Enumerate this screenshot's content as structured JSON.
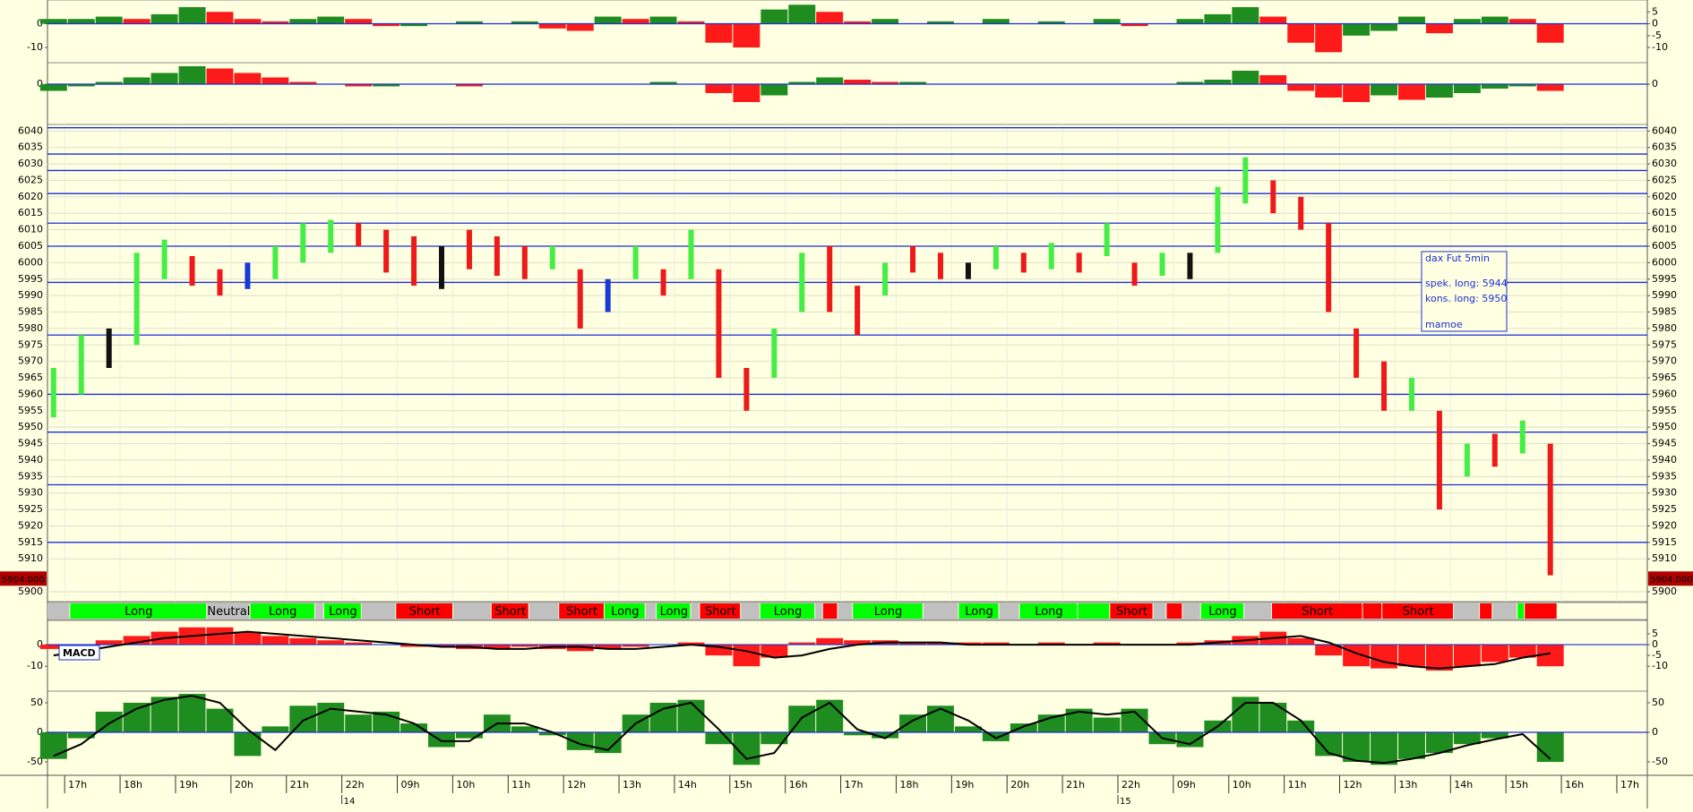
{
  "chart_data": [
    {
      "type": "bar",
      "xlim": [
        -0.31,
        28.55
      ],
      "ylim": [
        -16.4,
        10
      ],
      "yticks": [
        0,
        -10
      ],
      "y2lim": [
        -16.4,
        10
      ],
      "y2ticks": [
        5,
        0,
        -5,
        -10
      ],
      "x": [
        -0.2,
        0.3,
        0.8,
        1.3,
        1.8,
        2.3,
        2.8,
        3.3,
        3.8,
        4.3,
        4.8,
        5.3,
        5.8,
        6.3,
        6.8,
        7.3,
        7.8,
        8.3,
        8.8,
        9.3,
        9.8,
        10.3,
        10.8,
        11.3,
        11.8,
        12.3,
        12.8,
        13.3,
        13.8,
        14.3,
        14.8,
        15.3,
        15.8,
        16.3,
        16.8,
        17.3,
        17.8,
        18.3,
        18.8,
        19.3,
        19.8,
        20.3,
        20.8,
        21.3,
        21.8,
        22.3,
        22.8,
        23.3,
        23.8,
        24.3,
        24.8,
        25.3,
        25.8,
        26.3,
        26.8
      ],
      "series": [
        {
          "type": "bar",
          "up_color": "#1e8c1e",
          "down_color": "#ff1a1a",
          "values": [
            2,
            2,
            3,
            2,
            4,
            7,
            5,
            2,
            1,
            2,
            3,
            2,
            -1,
            -1,
            0,
            1,
            0,
            1,
            -2,
            -3,
            3,
            2,
            3,
            1,
            -8,
            -10,
            6,
            8,
            5,
            1,
            2,
            0,
            1,
            0,
            2,
            0,
            1,
            0,
            2,
            -1,
            0,
            2,
            4,
            7,
            3,
            -8,
            -12,
            -5,
            -3,
            3,
            -4,
            2,
            3,
            2,
            -8
          ]
        }
      ]
    },
    {
      "type": "bar",
      "xlim": [
        -0.31,
        28.55
      ],
      "ylim": [
        -18,
        9.6
      ],
      "yticks": [
        0
      ],
      "x": [
        -0.2,
        0.3,
        0.8,
        1.3,
        1.8,
        2.3,
        2.8,
        3.3,
        3.8,
        4.3,
        4.8,
        5.3,
        5.8,
        6.3,
        6.8,
        7.3,
        7.8,
        8.3,
        8.8,
        9.3,
        9.8,
        10.3,
        10.8,
        11.3,
        11.8,
        12.3,
        12.8,
        13.3,
        13.8,
        14.3,
        14.8,
        15.3,
        15.8,
        16.3,
        16.8,
        17.3,
        17.8,
        18.3,
        18.8,
        19.3,
        19.8,
        20.3,
        20.8,
        21.3,
        21.8,
        22.3,
        22.8,
        23.3,
        23.8,
        24.3,
        24.8,
        25.3,
        25.8,
        26.3,
        26.8
      ],
      "series": [
        {
          "type": "bar",
          "up_color": "#1e8c1e",
          "down_color": "#ff1a1a",
          "values": [
            -3,
            -1,
            1,
            3,
            5,
            8,
            7,
            5,
            3,
            1,
            0,
            -1,
            -1,
            0,
            0,
            -1,
            0,
            0,
            0,
            0,
            0,
            0,
            1,
            0,
            -4,
            -8,
            -5,
            1,
            3,
            2,
            1,
            1,
            0,
            0,
            0,
            0,
            0,
            0,
            0,
            0,
            0,
            1,
            2,
            6,
            4,
            -3,
            -6,
            -8,
            -5,
            -7,
            -6,
            -4,
            -2,
            -1,
            -3
          ]
        }
      ]
    },
    {
      "type": "range",
      "xlim": [
        -0.31,
        28.55
      ],
      "ylim": [
        5897,
        6042
      ],
      "grid": true,
      "yticks": [
        5900,
        5910,
        5915,
        5920,
        5925,
        5930,
        5935,
        5940,
        5945,
        5950,
        5955,
        5960,
        5965,
        5970,
        5975,
        5980,
        5985,
        5990,
        5995,
        6000,
        6005,
        6010,
        6015,
        6020,
        6025,
        6030,
        6035,
        6040
      ],
      "levels": [
        6041,
        6033,
        6028,
        6021,
        6012,
        6005,
        5994,
        5978,
        5960,
        5948.5,
        5932.5,
        5915
      ],
      "last_price": {
        "value": 5904,
        "label": "5904.000"
      },
      "annotation": {
        "title": "dax Fut 5min",
        "lines": [
          "spek. long: 5944",
          "kons. long: 5950",
          "mamoe"
        ]
      },
      "x": [
        -0.2,
        0.3,
        0.8,
        1.3,
        1.8,
        2.3,
        2.8,
        3.3,
        3.8,
        4.3,
        4.8,
        5.3,
        5.8,
        6.3,
        6.8,
        7.3,
        7.8,
        8.3,
        8.8,
        9.3,
        9.8,
        10.3,
        10.8,
        11.3,
        11.8,
        12.3,
        12.8,
        13.3,
        13.8,
        14.3,
        14.8,
        15.3,
        15.8,
        16.3,
        16.8,
        17.3,
        17.8,
        18.3,
        18.8,
        19.3,
        19.8,
        20.3,
        20.8,
        21.3,
        21.8,
        22.3,
        22.8,
        23.3,
        23.8,
        24.3,
        24.8,
        25.3,
        25.8,
        26.3,
        26.8
      ],
      "low": [
        5953,
        5960,
        5968,
        5975,
        5995,
        5993,
        5990,
        5992,
        5995,
        6000,
        6003,
        6005,
        5997,
        5993,
        5992,
        5998,
        5996,
        5995,
        5998,
        5980,
        5985,
        5995,
        5990,
        5995,
        5965,
        5955,
        5965,
        5985,
        5985,
        5978,
        5990,
        5997,
        5995,
        5995,
        5998,
        5997,
        5998,
        5997,
        6002,
        5993,
        5996,
        5995,
        6003,
        6018,
        6015,
        6010,
        5985,
        5965,
        5955,
        5955,
        5925,
        5935,
        5938,
        5942,
        5905
      ],
      "high": [
        5968,
        5978,
        5980,
        6003,
        6007,
        6002,
        5998,
        6000,
        6005,
        6012,
        6013,
        6012,
        6010,
        6008,
        6005,
        6010,
        6008,
        6005,
        6005,
        5998,
        5995,
        6005,
        5998,
        6010,
        5998,
        5968,
        5980,
        6003,
        6005,
        5993,
        6000,
        6005,
        6003,
        6000,
        6005,
        6003,
        6006,
        6003,
        6012,
        6000,
        6003,
        6003,
        6023,
        6032,
        6025,
        6020,
        6012,
        5980,
        5970,
        5965,
        5955,
        5945,
        5948,
        5952,
        5945
      ],
      "colors": [
        "#44ee44",
        "#44ee44",
        "#111111",
        "#44ee44",
        "#44ee44",
        "#ee1a1a",
        "#ee1a1a",
        "#1a3ad6",
        "#44ee44",
        "#44ee44",
        "#44ee44",
        "#ee1a1a",
        "#ee1a1a",
        "#ee1a1a",
        "#111111",
        "#ee1a1a",
        "#ee1a1a",
        "#ee1a1a",
        "#44ee44",
        "#ee1a1a",
        "#1a3ad6",
        "#44ee44",
        "#ee1a1a",
        "#44ee44",
        "#ee1a1a",
        "#ee1a1a",
        "#44ee44",
        "#44ee44",
        "#ee1a1a",
        "#ee1a1a",
        "#44ee44",
        "#ee1a1a",
        "#ee1a1a",
        "#111111",
        "#44ee44",
        "#ee1a1a",
        "#44ee44",
        "#ee1a1a",
        "#44ee44",
        "#ee1a1a",
        "#44ee44",
        "#111111",
        "#44ee44",
        "#44ee44",
        "#ee1a1a",
        "#ee1a1a",
        "#ee1a1a",
        "#ee1a1a",
        "#ee1a1a",
        "#44ee44",
        "#ee1a1a",
        "#44ee44",
        "#ee1a1a",
        "#44ee44",
        "#ee1a1a"
      ]
    },
    {
      "type": "band",
      "xlim": [
        -0.31,
        28.55
      ],
      "edges": [
        -0.31,
        0.1,
        2.57,
        3.35,
        4.52,
        4.68,
        5.36,
        5.98,
        7.01,
        7.7,
        8.38,
        8.92,
        9.74,
        10.48,
        10.68,
        11.3,
        11.46,
        12.2,
        12.55,
        13.54,
        13.68,
        13.95,
        14.22,
        15.49,
        16.13,
        16.86,
        17.23,
        18.28,
        18.86,
        19.64,
        19.88,
        20.17,
        20.5,
        21.28,
        21.78,
        23.42,
        23.77,
        25.06,
        25.53,
        25.76,
        26.21,
        26.34,
        26.93
      ],
      "labels": [
        null,
        "Long",
        "Neutral",
        "Long",
        null,
        "Long",
        null,
        "Short",
        null,
        "Short",
        null,
        "Short",
        "Long",
        null,
        "Long",
        null,
        "Short",
        null,
        "Long",
        null,
        null,
        null,
        "Long",
        null,
        "Long",
        null,
        "Long",
        null,
        "Short",
        null,
        null,
        null,
        "Long",
        null,
        "Short",
        null,
        "Short",
        null,
        null,
        null,
        null,
        null
      ],
      "colors": [
        "#c0c0c0",
        "#00ff00",
        "#c0c0c0",
        "#00ff00",
        "#c0c0c0",
        "#00ff00",
        "#c0c0c0",
        "#ff0000",
        "#c0c0c0",
        "#ff0000",
        "#c0c0c0",
        "#ff0000",
        "#00ff00",
        "#c0c0c0",
        "#00ff00",
        "#c0c0c0",
        "#ff0000",
        "#c0c0c0",
        "#00ff00",
        "#c0c0c0",
        "#ff0000",
        "#c0c0c0",
        "#00ff00",
        "#c0c0c0",
        "#00ff00",
        "#c0c0c0",
        "#00ff00",
        "#00ff00",
        "#ff0000",
        "#c0c0c0",
        "#ff0000",
        "#c0c0c0",
        "#00ff00",
        "#c0c0c0",
        "#ff0000",
        "#ff0000",
        "#ff0000",
        "#c0c0c0",
        "#ff0000",
        "#c0c0c0",
        "#00ff00",
        "#ff0000"
      ]
    },
    {
      "type": "bar",
      "title": "MACD",
      "xlim": [
        -0.31,
        28.55
      ],
      "ylim": [
        -21.5,
        11.2
      ],
      "yticks": [
        0,
        -10
      ],
      "y2lim": [
        -21.5,
        11.2
      ],
      "y2ticks": [
        5,
        0,
        -5,
        -10
      ],
      "x": [
        -0.2,
        0.3,
        0.8,
        1.3,
        1.8,
        2.3,
        2.8,
        3.3,
        3.8,
        4.3,
        4.8,
        5.3,
        5.8,
        6.3,
        6.8,
        7.3,
        7.8,
        8.3,
        8.8,
        9.3,
        9.8,
        10.3,
        10.8,
        11.3,
        11.8,
        12.3,
        12.8,
        13.3,
        13.8,
        14.3,
        14.8,
        15.3,
        15.8,
        16.3,
        16.8,
        17.3,
        17.8,
        18.3,
        18.8,
        19.3,
        19.8,
        20.3,
        20.8,
        21.3,
        21.8,
        22.3,
        22.8,
        23.3,
        23.8,
        24.3,
        24.8,
        25.3,
        25.8,
        26.3,
        26.8
      ],
      "series": [
        {
          "type": "bar",
          "color": "#ff1a1a",
          "values": [
            -2,
            -1,
            2,
            4,
            6,
            8,
            8,
            6,
            4,
            3,
            2,
            1,
            0,
            -1,
            -1,
            -2,
            -2,
            -1,
            -2,
            -3,
            -2,
            -1,
            0,
            1,
            -5,
            -10,
            -6,
            1,
            3,
            2,
            2,
            1,
            1,
            1,
            1,
            0,
            1,
            0,
            1,
            0,
            0,
            1,
            2,
            4,
            6,
            3,
            -5,
            -10,
            -11,
            -10,
            -12,
            -10,
            -8,
            -6,
            -10
          ]
        },
        {
          "type": "line",
          "color": "#000000",
          "values": [
            -5,
            -3,
            -1,
            1,
            3,
            4,
            5,
            6,
            5,
            4,
            3,
            2,
            1,
            0,
            -1,
            -1,
            -2,
            -2,
            -1,
            -1,
            -2,
            -2,
            -1,
            0,
            -1,
            -3,
            -6,
            -5,
            -2,
            0,
            1,
            1,
            1,
            0,
            0,
            0,
            0,
            0,
            0,
            0,
            0,
            0,
            1,
            2,
            3,
            4,
            1,
            -4,
            -8,
            -10,
            -11,
            -10,
            -9,
            -6,
            -4
          ]
        }
      ]
    },
    {
      "type": "bar",
      "xlim": [
        -0.31,
        28.55
      ],
      "ylim": [
        -72.7,
        69.7
      ],
      "yticks": [
        50,
        0,
        -50
      ],
      "xticks": [
        {
          "value": 0,
          "label": "17h"
        },
        {
          "value": 1,
          "label": "18h"
        },
        {
          "value": 2,
          "label": "19h"
        },
        {
          "value": 3,
          "label": "20h"
        },
        {
          "value": 4,
          "label": "21h"
        },
        {
          "value": 5,
          "label": "22h"
        },
        {
          "value": 6,
          "label": "09h"
        },
        {
          "value": 7,
          "label": "10h"
        },
        {
          "value": 8,
          "label": "11h"
        },
        {
          "value": 9,
          "label": "12h"
        },
        {
          "value": 10,
          "label": "13h"
        },
        {
          "value": 11,
          "label": "14h"
        },
        {
          "value": 12,
          "label": "15h"
        },
        {
          "value": 13,
          "label": "16h"
        },
        {
          "value": 14,
          "label": "17h"
        },
        {
          "value": 15,
          "label": "18h"
        },
        {
          "value": 16,
          "label": "19h"
        },
        {
          "value": 17,
          "label": "20h"
        },
        {
          "value": 18,
          "label": "21h"
        },
        {
          "value": 19,
          "label": "22h"
        },
        {
          "value": 20,
          "label": "09h"
        },
        {
          "value": 21,
          "label": "10h"
        },
        {
          "value": 22,
          "label": "11h"
        },
        {
          "value": 23,
          "label": "12h"
        },
        {
          "value": 24,
          "label": "13h"
        },
        {
          "value": 25,
          "label": "14h"
        },
        {
          "value": 26,
          "label": "15h"
        },
        {
          "value": 27,
          "label": "16h"
        },
        {
          "value": 28,
          "label": "17h"
        }
      ],
      "date_ticks": [
        {
          "value": 5,
          "label": "14"
        },
        {
          "value": 19,
          "label": "15"
        }
      ],
      "x": [
        -0.2,
        0.3,
        0.8,
        1.3,
        1.8,
        2.3,
        2.8,
        3.3,
        3.8,
        4.3,
        4.8,
        5.3,
        5.8,
        6.3,
        6.8,
        7.3,
        7.8,
        8.3,
        8.8,
        9.3,
        9.8,
        10.3,
        10.8,
        11.3,
        11.8,
        12.3,
        12.8,
        13.3,
        13.8,
        14.3,
        14.8,
        15.3,
        15.8,
        16.3,
        16.8,
        17.3,
        17.8,
        18.3,
        18.8,
        19.3,
        19.8,
        20.3,
        20.8,
        21.3,
        21.8,
        22.3,
        22.8,
        23.3,
        23.8,
        24.3,
        24.8,
        25.3,
        25.8,
        26.3,
        26.8
      ],
      "series": [
        {
          "type": "bar",
          "color": "#1e8c1e",
          "values": [
            -45,
            -10,
            35,
            50,
            60,
            65,
            40,
            -40,
            10,
            45,
            50,
            30,
            35,
            15,
            -25,
            -10,
            30,
            10,
            -5,
            -30,
            -35,
            30,
            50,
            55,
            -20,
            -55,
            -20,
            45,
            55,
            -5,
            -10,
            30,
            45,
            10,
            -15,
            15,
            30,
            40,
            25,
            40,
            -20,
            -25,
            20,
            60,
            50,
            20,
            -40,
            -50,
            -55,
            -45,
            -35,
            -20,
            -10,
            0,
            -50
          ]
        },
        {
          "type": "line",
          "color": "#000000",
          "values": [
            -40,
            -20,
            15,
            40,
            55,
            62,
            50,
            5,
            -30,
            20,
            40,
            35,
            30,
            15,
            -15,
            -15,
            15,
            15,
            0,
            -20,
            -30,
            15,
            40,
            50,
            5,
            -45,
            -35,
            25,
            50,
            5,
            -10,
            20,
            40,
            20,
            -10,
            10,
            25,
            35,
            30,
            35,
            -10,
            -20,
            10,
            50,
            50,
            20,
            -35,
            -48,
            -52,
            -45,
            -35,
            -22,
            -12,
            -3,
            -45
          ]
        }
      ]
    }
  ]
}
